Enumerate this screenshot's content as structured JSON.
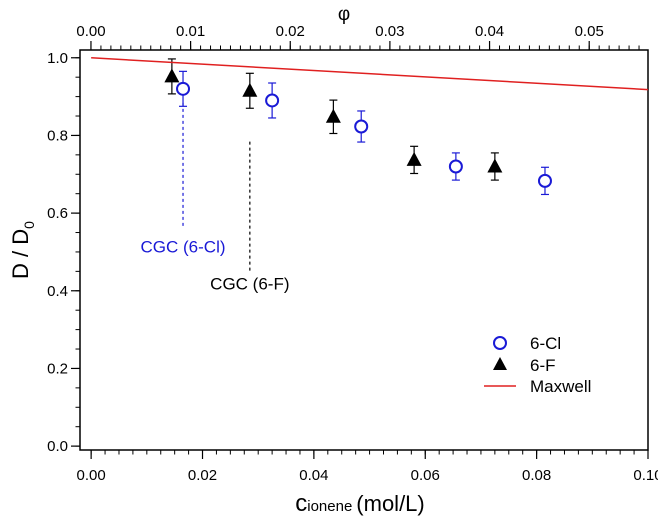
{
  "chart_data": {
    "type": "scatter",
    "title": "",
    "xlabel_main": "c",
    "xlabel_sub": "ionene",
    "xlabel_unit": "(mol/L)",
    "ylabel_main": "D / D",
    "ylabel_sub": "0",
    "x2label": "φ",
    "xlim": [
      -0.002,
      0.1
    ],
    "ylim": [
      -0.01,
      1.02
    ],
    "x2lim": [
      -0.0011,
      0.0559
    ],
    "x_ticks": [
      "0.00",
      "0.02",
      "0.04",
      "0.06",
      "0.08",
      "0.10"
    ],
    "y_ticks": [
      "0.0",
      "0.2",
      "0.4",
      "0.6",
      "0.8",
      "1.0"
    ],
    "x2_ticks": [
      "0.00",
      "0.01",
      "0.02",
      "0.03",
      "0.04",
      "0.05"
    ],
    "grid": false,
    "legend_position": "bottom-right",
    "legend": [
      "6-Cl",
      "6-F",
      "Maxwell"
    ],
    "colors": {
      "6-Cl": "#1a1ad6",
      "6-F": "#000000",
      "Maxwell": "#e02020"
    },
    "series": [
      {
        "name": "6-Cl",
        "marker": "open-circle",
        "x": [
          0.0165,
          0.0325,
          0.0485,
          0.0655,
          0.0815
        ],
        "y": [
          0.92,
          0.89,
          0.823,
          0.72,
          0.683
        ],
        "err": [
          0.045,
          0.045,
          0.04,
          0.035,
          0.035
        ]
      },
      {
        "name": "6-F",
        "marker": "filled-triangle",
        "x": [
          0.0145,
          0.0285,
          0.0435,
          0.058,
          0.0725
        ],
        "y": [
          0.952,
          0.915,
          0.848,
          0.737,
          0.72
        ],
        "err": [
          0.045,
          0.045,
          0.043,
          0.035,
          0.035
        ]
      },
      {
        "name": "Maxwell",
        "marker": "line",
        "x": [
          0.0,
          0.1
        ],
        "y": [
          1.0,
          0.918
        ]
      }
    ],
    "annotations": [
      {
        "text": "CGC (6-Cl)",
        "x": 0.0165,
        "y_top": 0.92,
        "y_bottom": 0.56,
        "color": "#1a1ad6"
      },
      {
        "text": "CGC (6-F)",
        "x": 0.0285,
        "y_top": 0.82,
        "y_bottom": 0.45,
        "color": "#000000"
      }
    ]
  }
}
